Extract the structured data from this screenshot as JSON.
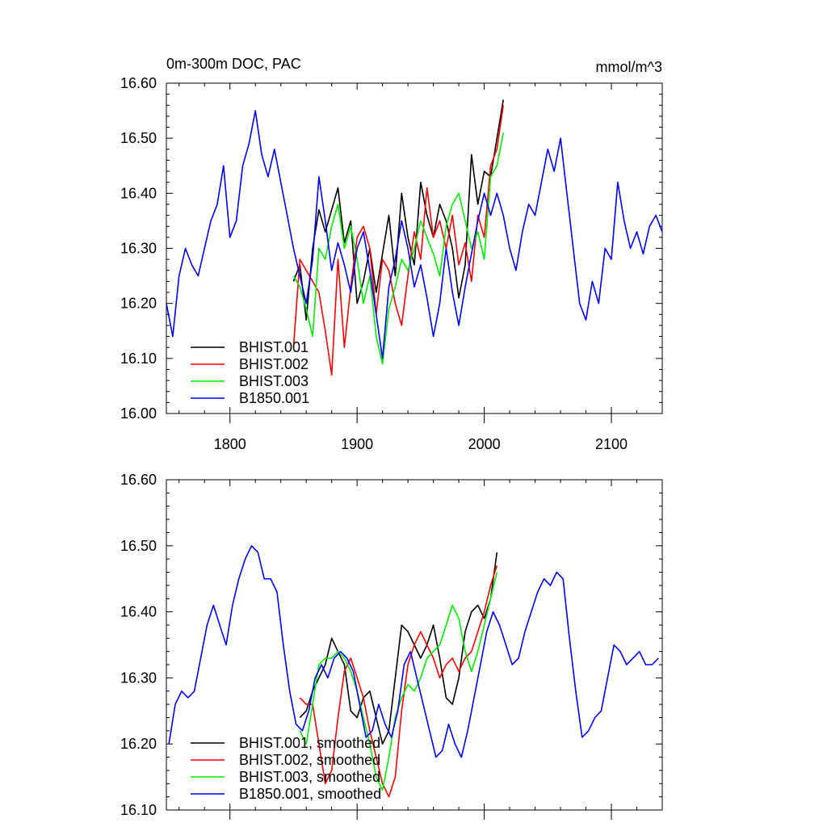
{
  "chart_data": [
    {
      "type": "line",
      "title": "0m-300m DOC, PAC",
      "units": "mmol/m^3",
      "xlabel": "",
      "ylabel": "",
      "xlim": [
        1750,
        2140
      ],
      "ylim": [
        16.0,
        16.6
      ],
      "x_ticks": [
        1800,
        1900,
        2000,
        2100
      ],
      "x_tick_labels": [
        "1800",
        "1900",
        "2000",
        "2100"
      ],
      "y_ticks": [
        16.0,
        16.1,
        16.2,
        16.3,
        16.4,
        16.5,
        16.6
      ],
      "y_tick_labels": [
        "16.00",
        "16.10",
        "16.20",
        "16.30",
        "16.40",
        "16.50",
        "16.60"
      ],
      "grid": false,
      "legend_position": "bottom-left",
      "series": [
        {
          "name": "BHIST.001",
          "color": "#000000",
          "x": [
            1850,
            1855,
            1860,
            1865,
            1870,
            1875,
            1880,
            1885,
            1890,
            1895,
            1900,
            1905,
            1910,
            1915,
            1920,
            1925,
            1930,
            1935,
            1940,
            1945,
            1950,
            1955,
            1960,
            1965,
            1970,
            1975,
            1980,
            1985,
            1990,
            1995,
            2000,
            2005,
            2010,
            2015
          ],
          "y": [
            16.24,
            16.27,
            16.17,
            16.3,
            16.37,
            16.33,
            16.37,
            16.41,
            16.31,
            16.35,
            16.2,
            16.24,
            16.3,
            16.22,
            16.29,
            16.36,
            16.25,
            16.4,
            16.32,
            16.27,
            16.42,
            16.36,
            16.32,
            16.38,
            16.35,
            16.3,
            16.21,
            16.27,
            16.47,
            16.38,
            16.44,
            16.43,
            16.5,
            16.57
          ]
        },
        {
          "name": "BHIST.002",
          "color": "#ff0000",
          "x": [
            1850,
            1855,
            1860,
            1865,
            1870,
            1875,
            1880,
            1885,
            1890,
            1895,
            1900,
            1905,
            1910,
            1915,
            1920,
            1925,
            1930,
            1935,
            1940,
            1945,
            1950,
            1955,
            1960,
            1965,
            1970,
            1975,
            1980,
            1985,
            1990,
            1995,
            2000,
            2005,
            2010,
            2015
          ],
          "y": [
            16.12,
            16.28,
            16.26,
            16.24,
            16.22,
            16.15,
            16.07,
            16.28,
            16.12,
            16.23,
            16.32,
            16.34,
            16.3,
            16.18,
            16.28,
            16.26,
            16.2,
            16.16,
            16.25,
            16.33,
            16.28,
            16.41,
            16.32,
            16.35,
            16.3,
            16.36,
            16.27,
            16.31,
            16.24,
            16.36,
            16.32,
            16.45,
            16.48,
            16.56
          ]
        },
        {
          "name": "BHIST.003",
          "color": "#00ee00",
          "x": [
            1850,
            1855,
            1860,
            1865,
            1870,
            1875,
            1880,
            1885,
            1890,
            1895,
            1900,
            1905,
            1910,
            1915,
            1920,
            1925,
            1930,
            1935,
            1940,
            1945,
            1950,
            1955,
            1960,
            1965,
            1970,
            1975,
            1980,
            1985,
            1990,
            1995,
            2000,
            2005,
            2010,
            2015
          ],
          "y": [
            16.25,
            16.23,
            16.19,
            16.14,
            16.3,
            16.28,
            16.34,
            16.38,
            16.3,
            16.34,
            16.28,
            16.2,
            16.25,
            16.14,
            16.09,
            16.19,
            16.23,
            16.28,
            16.26,
            16.3,
            16.35,
            16.32,
            16.29,
            16.25,
            16.34,
            16.38,
            16.4,
            16.35,
            16.3,
            16.33,
            16.28,
            16.43,
            16.45,
            16.51
          ]
        },
        {
          "name": "B1850.001",
          "color": "#0000ff",
          "x": [
            1750,
            1755,
            1760,
            1765,
            1770,
            1775,
            1780,
            1785,
            1790,
            1795,
            1800,
            1805,
            1810,
            1815,
            1820,
            1825,
            1830,
            1835,
            1840,
            1845,
            1850,
            1855,
            1860,
            1865,
            1870,
            1875,
            1880,
            1885,
            1890,
            1895,
            1900,
            1905,
            1910,
            1915,
            1920,
            1925,
            1930,
            1935,
            1940,
            1945,
            1950,
            1955,
            1960,
            1965,
            1970,
            1975,
            1980,
            1985,
            1990,
            1995,
            2000,
            2005,
            2010,
            2015,
            2020,
            2025,
            2030,
            2035,
            2040,
            2045,
            2050,
            2055,
            2060,
            2065,
            2070,
            2075,
            2080,
            2085,
            2090,
            2095,
            2100,
            2105,
            2110,
            2115,
            2120,
            2125,
            2130,
            2135,
            2140
          ],
          "y": [
            16.2,
            16.14,
            16.25,
            16.3,
            16.27,
            16.25,
            16.3,
            16.35,
            16.38,
            16.45,
            16.32,
            16.35,
            16.45,
            16.49,
            16.55,
            16.47,
            16.43,
            16.48,
            16.42,
            16.36,
            16.3,
            16.25,
            16.2,
            16.28,
            16.43,
            16.35,
            16.26,
            16.31,
            16.27,
            16.22,
            16.3,
            16.33,
            16.26,
            16.18,
            16.1,
            16.23,
            16.28,
            16.35,
            16.3,
            16.23,
            16.27,
            16.21,
            16.14,
            16.2,
            16.3,
            16.22,
            16.16,
            16.23,
            16.29,
            16.35,
            16.4,
            16.36,
            16.4,
            16.36,
            16.3,
            16.26,
            16.33,
            16.38,
            16.36,
            16.42,
            16.48,
            16.44,
            16.5,
            16.4,
            16.3,
            16.2,
            16.17,
            16.24,
            16.2,
            16.3,
            16.28,
            16.42,
            16.35,
            16.3,
            16.33,
            16.29,
            16.34,
            16.36,
            16.33
          ]
        }
      ]
    },
    {
      "type": "line",
      "title": "",
      "xlabel": "",
      "ylabel": "",
      "xlim": [
        1750,
        2140
      ],
      "ylim": [
        16.1,
        16.6
      ],
      "x_ticks": [
        1800,
        1900,
        2000,
        2100
      ],
      "y_ticks": [
        16.1,
        16.2,
        16.3,
        16.4,
        16.5,
        16.6
      ],
      "y_tick_labels": [
        "16.10",
        "16.20",
        "16.30",
        "16.40",
        "16.50",
        "16.60"
      ],
      "grid": false,
      "legend_position": "bottom-left",
      "series": [
        {
          "name": "BHIST.001, smoothed",
          "color": "#000000",
          "x": [
            1855,
            1860,
            1865,
            1870,
            1875,
            1880,
            1885,
            1890,
            1895,
            1900,
            1905,
            1910,
            1915,
            1920,
            1925,
            1930,
            1935,
            1940,
            1945,
            1950,
            1955,
            1960,
            1965,
            1970,
            1975,
            1980,
            1985,
            1990,
            1995,
            2000,
            2005,
            2010
          ],
          "y": [
            16.24,
            16.25,
            16.28,
            16.3,
            16.32,
            16.36,
            16.34,
            16.32,
            16.25,
            16.24,
            16.27,
            16.28,
            16.24,
            16.2,
            16.22,
            16.3,
            16.38,
            16.37,
            16.35,
            16.33,
            16.35,
            16.38,
            16.33,
            16.27,
            16.26,
            16.3,
            16.37,
            16.4,
            16.41,
            16.39,
            16.42,
            16.49
          ]
        },
        {
          "name": "BHIST.002, smoothed",
          "color": "#ff0000",
          "x": [
            1855,
            1860,
            1865,
            1870,
            1875,
            1880,
            1885,
            1890,
            1895,
            1900,
            1905,
            1910,
            1915,
            1920,
            1925,
            1930,
            1935,
            1940,
            1945,
            1950,
            1955,
            1960,
            1965,
            1970,
            1975,
            1980,
            1985,
            1990,
            1995,
            2000,
            2005,
            2010
          ],
          "y": [
            16.27,
            16.26,
            16.26,
            16.2,
            16.14,
            16.16,
            16.24,
            16.31,
            16.33,
            16.3,
            16.27,
            16.22,
            16.18,
            16.14,
            16.12,
            16.15,
            16.25,
            16.32,
            16.35,
            16.37,
            16.35,
            16.33,
            16.3,
            16.32,
            16.33,
            16.31,
            16.33,
            16.34,
            16.37,
            16.4,
            16.44,
            16.47
          ]
        },
        {
          "name": "BHIST.003, smoothed",
          "color": "#00ee00",
          "x": [
            1855,
            1860,
            1865,
            1870,
            1875,
            1880,
            1885,
            1890,
            1895,
            1900,
            1905,
            1910,
            1915,
            1920,
            1925,
            1930,
            1935,
            1940,
            1945,
            1950,
            1955,
            1960,
            1965,
            1970,
            1975,
            1980,
            1985,
            1990,
            1995,
            2000,
            2005,
            2010
          ],
          "y": [
            16.22,
            16.2,
            16.26,
            16.32,
            16.33,
            16.33,
            16.34,
            16.33,
            16.31,
            16.28,
            16.24,
            16.2,
            16.15,
            16.13,
            16.18,
            16.24,
            16.27,
            16.29,
            16.28,
            16.3,
            16.33,
            16.34,
            16.35,
            16.38,
            16.41,
            16.39,
            16.34,
            16.31,
            16.34,
            16.38,
            16.42,
            16.46
          ]
        },
        {
          "name": "B1850.001, smoothed",
          "color": "#0000ff",
          "x": [
            1752,
            1757,
            1762,
            1767,
            1772,
            1777,
            1782,
            1787,
            1792,
            1797,
            1802,
            1807,
            1812,
            1817,
            1822,
            1827,
            1832,
            1837,
            1842,
            1847,
            1852,
            1857,
            1862,
            1867,
            1872,
            1877,
            1882,
            1887,
            1892,
            1897,
            1902,
            1907,
            1912,
            1917,
            1922,
            1927,
            1932,
            1937,
            1942,
            1947,
            1952,
            1957,
            1962,
            1967,
            1972,
            1977,
            1982,
            1987,
            1992,
            1997,
            2002,
            2007,
            2012,
            2017,
            2022,
            2027,
            2032,
            2037,
            2042,
            2047,
            2052,
            2057,
            2062,
            2067,
            2072,
            2077,
            2082,
            2087,
            2092,
            2097,
            2102,
            2107,
            2112,
            2117,
            2122,
            2127,
            2132,
            2137
          ],
          "y": [
            16.2,
            16.26,
            16.28,
            16.27,
            16.28,
            16.33,
            16.38,
            16.41,
            16.38,
            16.35,
            16.41,
            16.45,
            16.48,
            16.5,
            16.49,
            16.45,
            16.45,
            16.43,
            16.35,
            16.28,
            16.23,
            16.22,
            16.25,
            16.3,
            16.32,
            16.3,
            16.33,
            16.34,
            16.33,
            16.31,
            16.26,
            16.21,
            16.22,
            16.26,
            16.23,
            16.21,
            16.25,
            16.32,
            16.34,
            16.3,
            16.26,
            16.22,
            16.18,
            16.19,
            16.23,
            16.2,
            16.18,
            16.22,
            16.27,
            16.32,
            16.37,
            16.4,
            16.38,
            16.35,
            16.32,
            16.33,
            16.37,
            16.4,
            16.43,
            16.45,
            16.44,
            16.46,
            16.45,
            16.36,
            16.28,
            16.21,
            16.22,
            16.24,
            16.25,
            16.3,
            16.35,
            16.34,
            16.32,
            16.33,
            16.34,
            16.32,
            16.32,
            16.33
          ]
        }
      ]
    }
  ]
}
